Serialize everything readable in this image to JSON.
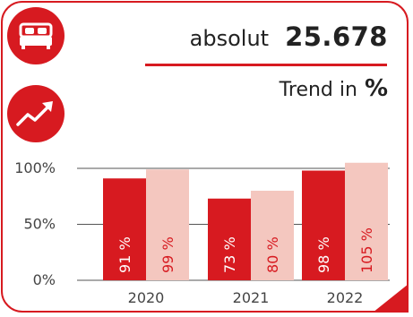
{
  "header": {
    "absolut_label": "absolut",
    "absolut_value": "25.678",
    "trend_label": "Trend in",
    "trend_unit": "%"
  },
  "icons": {
    "top": "bed-icon",
    "middle": "trend-up-icon"
  },
  "colors": {
    "accent": "#d71a20",
    "light_bar": "#f4c7bf"
  },
  "chart_data": {
    "type": "bar",
    "categories": [
      "2020",
      "2021",
      "2022"
    ],
    "series": [
      {
        "values": [
          91,
          73,
          98
        ],
        "labels": [
          "91 %",
          "73 %",
          "98 %"
        ],
        "color": "#d71a20"
      },
      {
        "values": [
          99,
          80,
          105
        ],
        "labels": [
          "99 %",
          "80 %",
          "105 %"
        ],
        "color": "#f4c7bf"
      }
    ],
    "yticks": [
      "0%",
      "50%",
      "100%"
    ],
    "ytick_values": [
      0,
      50,
      100
    ],
    "ylim": [
      0,
      100
    ],
    "grid": true
  }
}
